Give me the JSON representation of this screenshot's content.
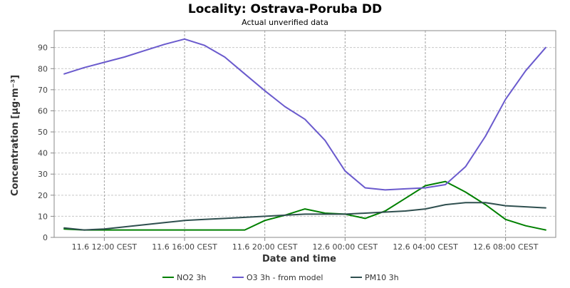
{
  "chart_data": {
    "type": "line",
    "title": "Locality: Ostrava-Poruba DD",
    "subtitle": "Actual unverified data",
    "xlabel": "Date and time",
    "ylabel": "Concentration [µg·m⁻³]",
    "x": [
      "2023-06-11 10:00",
      "2023-06-11 11:00",
      "2023-06-11 12:00",
      "2023-06-11 13:00",
      "2023-06-11 14:00",
      "2023-06-11 15:00",
      "2023-06-11 16:00",
      "2023-06-11 17:00",
      "2023-06-11 18:00",
      "2023-06-11 19:00",
      "2023-06-11 20:00",
      "2023-06-11 21:00",
      "2023-06-11 22:00",
      "2023-06-11 23:00",
      "2023-06-12 00:00",
      "2023-06-12 01:00",
      "2023-06-12 02:00",
      "2023-06-12 03:00",
      "2023-06-12 04:00",
      "2023-06-12 05:00",
      "2023-06-12 06:00",
      "2023-06-12 07:00",
      "2023-06-12 08:00",
      "2023-06-12 09:00",
      "2023-06-12 10:00"
    ],
    "xlim": [
      "2023-06-11 09:30",
      "2023-06-12 10:30"
    ],
    "x_ticks": [
      {
        "at": "2023-06-11 12:00",
        "label": "11.6 12:00 CEST"
      },
      {
        "at": "2023-06-11 16:00",
        "label": "11.6 16:00 CEST"
      },
      {
        "at": "2023-06-11 20:00",
        "label": "11.6 20:00 CEST"
      },
      {
        "at": "2023-06-12 00:00",
        "label": "12.6 00:00 CEST"
      },
      {
        "at": "2023-06-12 04:00",
        "label": "12.6 04:00 CEST"
      },
      {
        "at": "2023-06-12 08:00",
        "label": "12.6 08:00 CEST"
      }
    ],
    "ylim": [
      0,
      98
    ],
    "y_ticks": [
      0,
      10,
      20,
      30,
      40,
      50,
      60,
      70,
      80,
      90
    ],
    "grid": true,
    "legend_position": "bottom",
    "series": [
      {
        "name": "NO2 3h",
        "color": "#008000",
        "values": [
          4,
          3.5,
          3.5,
          3.5,
          3.5,
          3.5,
          3.5,
          3.5,
          3.5,
          3.5,
          8,
          10.5,
          13.5,
          11.5,
          11,
          9,
          12.5,
          18.5,
          24.5,
          26.5,
          21.5,
          15.5,
          8.5,
          5.5,
          3.5
        ]
      },
      {
        "name": "O3 3h - from model",
        "color": "#6a5acd",
        "values": [
          77.5,
          80.5,
          83,
          85.5,
          88.5,
          91.5,
          94,
          91,
          85.5,
          77.5,
          69.5,
          62,
          56,
          46,
          31.5,
          23.5,
          22.5,
          23,
          23.5,
          25,
          33.5,
          48,
          65.5,
          79,
          90
        ]
      },
      {
        "name": "PM10 3h",
        "color": "#2f4f4f",
        "values": [
          4.5,
          3.5,
          4,
          5,
          6,
          7,
          8,
          8.5,
          9,
          9.5,
          10,
          10.5,
          11,
          11,
          11,
          11.5,
          12,
          12.5,
          13.5,
          15.5,
          16.5,
          16.5,
          15,
          14.5,
          14
        ]
      }
    ]
  }
}
